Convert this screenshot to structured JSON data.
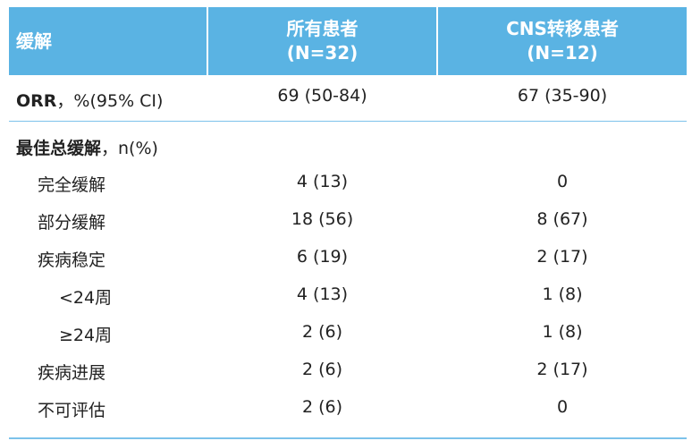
{
  "header": {
    "col0": "缓解",
    "col1_line1": "所有患者",
    "col1_line2": "(N=32)",
    "col2_line1": "CNS转移患者",
    "col2_line2": "(N=12)"
  },
  "orr": {
    "label_bold": "ORR",
    "label_rest": "，%(95% CI)",
    "all": "69 (50-84)",
    "cns": "67 (35-90)"
  },
  "best": {
    "label_bold": "最佳总缓解",
    "label_rest": "，n(%)",
    "rows": [
      {
        "label": "完全缓解",
        "all": "4 (13)",
        "cns": "0"
      },
      {
        "label": "部分缓解",
        "all": "18 (56)",
        "cns": "8 (67)"
      },
      {
        "label": "疾病稳定",
        "all": "6 (19)",
        "cns": "2 (17)"
      },
      {
        "label": "<24周",
        "all": "4 (13)",
        "cns": "1 (8)"
      },
      {
        "label": "≥24周",
        "all": "2 (6)",
        "cns": "1 (8)"
      },
      {
        "label": "疾病进展",
        "all": "2 (6)",
        "cns": "2 (17)"
      },
      {
        "label": "不可评估",
        "all": "2 (6)",
        "cns": "0"
      }
    ]
  }
}
